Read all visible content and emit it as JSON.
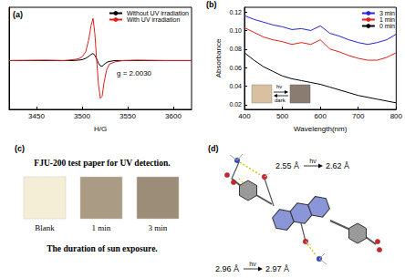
{
  "chart_data": [
    {
      "type": "line",
      "title": "(a)",
      "xlabel": "H/G",
      "x": [
        3420,
        3460,
        3480,
        3490,
        3496,
        3500,
        3504,
        3507,
        3510,
        3512,
        3514,
        3516,
        3518,
        3520,
        3522,
        3524,
        3527,
        3530,
        3536,
        3545,
        3560,
        3590,
        3620
      ],
      "series": [
        {
          "name": "Without UV irradiation",
          "color": "#000000",
          "values": [
            0,
            0,
            0,
            0,
            0.01,
            0.02,
            0.05,
            0.09,
            0.14,
            0.16,
            0.12,
            0.03,
            -0.06,
            -0.12,
            -0.13,
            -0.09,
            -0.04,
            -0.02,
            0,
            0,
            0,
            0,
            0
          ]
        },
        {
          "name": "With UV irradiation",
          "color": "#e0201b",
          "values": [
            0,
            0.01,
            0,
            0.02,
            0.04,
            0.08,
            0.2,
            0.45,
            0.8,
            0.95,
            0.6,
            0,
            -0.55,
            -0.85,
            -0.8,
            -0.5,
            -0.2,
            -0.08,
            -0.03,
            0,
            0.01,
            0,
            0
          ]
        }
      ],
      "xlim": [
        3420,
        3620
      ],
      "xticks": [
        3450,
        3500,
        3550,
        3600
      ],
      "ylim": [
        -1.1,
        1.2
      ],
      "tick_labels": "x",
      "legend": "top-right",
      "annotations": [
        "g = 2.0030"
      ]
    },
    {
      "type": "line",
      "title": "(b)",
      "xlabel": "Wavelength(nm)",
      "ylabel": "Absorbance",
      "x": [
        400,
        425,
        450,
        475,
        500,
        525,
        550,
        575,
        600,
        625,
        650,
        675,
        700,
        725,
        750,
        775,
        800
      ],
      "series": [
        {
          "name": "3 min",
          "color": "#2424d8",
          "values": [
            0.116,
            0.112,
            0.109,
            0.106,
            0.104,
            0.101,
            0.102,
            0.1,
            0.105,
            0.097,
            0.094,
            0.09,
            0.087,
            0.085,
            0.087,
            0.09,
            0.096
          ]
        },
        {
          "name": "1 min",
          "color": "#e0201b",
          "values": [
            0.103,
            0.098,
            0.093,
            0.09,
            0.088,
            0.085,
            0.087,
            0.085,
            0.09,
            0.08,
            0.077,
            0.073,
            0.07,
            0.068,
            0.068,
            0.071,
            0.076
          ]
        },
        {
          "name": "0 min",
          "color": "#000000",
          "values": [
            0.076,
            0.068,
            0.061,
            0.056,
            0.051,
            0.048,
            0.046,
            0.044,
            0.042,
            0.039,
            0.036,
            0.033,
            0.03,
            0.028,
            0.026,
            0.024,
            0.022
          ]
        }
      ],
      "xlim": [
        400,
        800
      ],
      "xticks": [
        400,
        500,
        600,
        700,
        800
      ],
      "ylim": [
        0.015,
        0.125
      ],
      "yticks": [
        0.02,
        0.04,
        0.06,
        0.08,
        {
          "value": 0.1,
          "label": "0.10"
        },
        0.12
      ],
      "legend": "top-right",
      "annotations": [
        "hν",
        "dark"
      ]
    }
  ],
  "panels": {
    "c": {
      "label": "(c)",
      "title": "FJU-200 test paper for UV detection.",
      "samples": [
        "Blank",
        "1 min",
        "3 min"
      ],
      "caption": "The duration of sun exposure."
    },
    "d": {
      "label": "(d)",
      "distances": [
        {
          "before": "2.55 Å",
          "light": "hν",
          "after": "2.62 Å"
        },
        {
          "before": "2.96 Å",
          "light": "hν",
          "after": "2.97 Å"
        }
      ]
    }
  }
}
